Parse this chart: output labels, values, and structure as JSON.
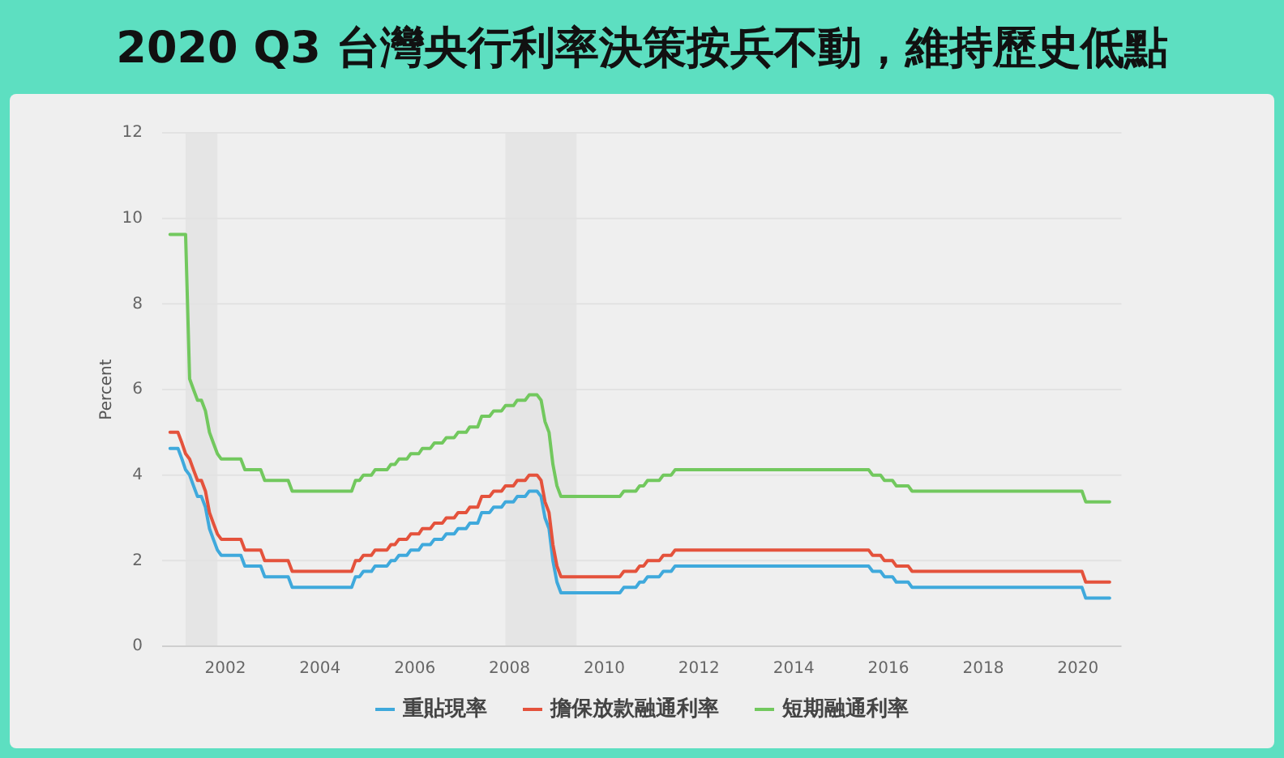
{
  "chart_data": {
    "type": "line",
    "title": "2020 Q3 台灣央行利率決策按兵不動，維持歷史低點",
    "ylabel": "Percent",
    "x": [
      "2000-11",
      "2001-01",
      "2001-02",
      "2001-03",
      "2001-04",
      "2001-05",
      "2001-06",
      "2001-07",
      "2001-08",
      "2001-09",
      "2001-10",
      "2001-11",
      "2001-12",
      "2002-05",
      "2002-06",
      "2002-10",
      "2002-11",
      "2003-05",
      "2003-06",
      "2004-09",
      "2004-10",
      "2004-11",
      "2004-12",
      "2005-02",
      "2005-03",
      "2005-06",
      "2005-07",
      "2005-08",
      "2005-09",
      "2005-11",
      "2005-12",
      "2006-02",
      "2006-03",
      "2006-05",
      "2006-06",
      "2006-08",
      "2006-09",
      "2006-11",
      "2006-12",
      "2007-02",
      "2007-03",
      "2007-05",
      "2007-06",
      "2007-08",
      "2007-09",
      "2007-11",
      "2007-12",
      "2008-02",
      "2008-03",
      "2008-05",
      "2008-06",
      "2008-08",
      "2008-09",
      "2008-10",
      "2008-11",
      "2008-12",
      "2009-01",
      "2009-02",
      "2010-05",
      "2010-06",
      "2010-09",
      "2010-10",
      "2010-11",
      "2010-12",
      "2011-03",
      "2011-04",
      "2011-06",
      "2011-07",
      "2015-08",
      "2015-09",
      "2015-11",
      "2015-12",
      "2016-02",
      "2016-03",
      "2016-06",
      "2016-07",
      "2020-02",
      "2020-03",
      "2020-09"
    ],
    "series": [
      {
        "name": "重貼現率",
        "color": "#3fa9dc",
        "values": [
          4.625,
          4.625,
          4.375,
          4.125,
          4.0,
          3.75,
          3.5,
          3.5,
          3.25,
          2.75,
          2.5,
          2.25,
          2.125,
          2.125,
          1.875,
          1.875,
          1.625,
          1.625,
          1.375,
          1.375,
          1.625,
          1.625,
          1.75,
          1.75,
          1.875,
          1.875,
          2.0,
          2.0,
          2.125,
          2.125,
          2.25,
          2.25,
          2.375,
          2.375,
          2.5,
          2.5,
          2.625,
          2.625,
          2.75,
          2.75,
          2.875,
          2.875,
          3.125,
          3.125,
          3.25,
          3.25,
          3.375,
          3.375,
          3.5,
          3.5,
          3.625,
          3.625,
          3.5,
          3.0,
          2.75,
          2.0,
          1.5,
          1.25,
          1.25,
          1.375,
          1.375,
          1.5,
          1.5,
          1.625,
          1.625,
          1.75,
          1.75,
          1.875,
          1.875,
          1.75,
          1.75,
          1.625,
          1.625,
          1.5,
          1.5,
          1.375,
          1.375,
          1.125,
          1.125
        ]
      },
      {
        "name": "擔保放款融通利率",
        "color": "#e4523c",
        "values": [
          5.0,
          5.0,
          4.75,
          4.5,
          4.375,
          4.125,
          3.875,
          3.875,
          3.625,
          3.125,
          2.875,
          2.625,
          2.5,
          2.5,
          2.25,
          2.25,
          2.0,
          2.0,
          1.75,
          1.75,
          2.0,
          2.0,
          2.125,
          2.125,
          2.25,
          2.25,
          2.375,
          2.375,
          2.5,
          2.5,
          2.625,
          2.625,
          2.75,
          2.75,
          2.875,
          2.875,
          3.0,
          3.0,
          3.125,
          3.125,
          3.25,
          3.25,
          3.5,
          3.5,
          3.625,
          3.625,
          3.75,
          3.75,
          3.875,
          3.875,
          4.0,
          4.0,
          3.875,
          3.375,
          3.125,
          2.375,
          1.875,
          1.625,
          1.625,
          1.75,
          1.75,
          1.875,
          1.875,
          2.0,
          2.0,
          2.125,
          2.125,
          2.25,
          2.25,
          2.125,
          2.125,
          2.0,
          2.0,
          1.875,
          1.875,
          1.75,
          1.75,
          1.5,
          1.5
        ]
      },
      {
        "name": "短期融通利率",
        "color": "#72c85e",
        "values": [
          9.625,
          9.625,
          9.625,
          9.625,
          6.25,
          6.0,
          5.75,
          5.75,
          5.5,
          5.0,
          4.75,
          4.5,
          4.375,
          4.375,
          4.125,
          4.125,
          3.875,
          3.875,
          3.625,
          3.625,
          3.875,
          3.875,
          4.0,
          4.0,
          4.125,
          4.125,
          4.25,
          4.25,
          4.375,
          4.375,
          4.5,
          4.5,
          4.625,
          4.625,
          4.75,
          4.75,
          4.875,
          4.875,
          5.0,
          5.0,
          5.125,
          5.125,
          5.375,
          5.375,
          5.5,
          5.5,
          5.625,
          5.625,
          5.75,
          5.75,
          5.875,
          5.875,
          5.75,
          5.25,
          5.0,
          4.25,
          3.75,
          3.5,
          3.5,
          3.625,
          3.625,
          3.75,
          3.75,
          3.875,
          3.875,
          4.0,
          4.0,
          4.125,
          4.125,
          4.0,
          4.0,
          3.875,
          3.875,
          3.75,
          3.75,
          3.625,
          3.625,
          3.375,
          3.375
        ]
      }
    ],
    "xlim": [
      "2000-09",
      "2020-12"
    ],
    "xticks": [
      "2002",
      "2004",
      "2006",
      "2008",
      "2010",
      "2012",
      "2014",
      "2016",
      "2018",
      "2020"
    ],
    "ylim": [
      0,
      12
    ],
    "yticks": [
      0,
      2,
      4,
      6,
      8,
      10,
      12
    ],
    "grid": "y",
    "legend": "bottom",
    "line_style": "solid",
    "bands": [
      {
        "axis": "x",
        "from": "2001-03",
        "to": "2001-11",
        "color": "#e5e5e5"
      },
      {
        "axis": "x",
        "from": "2007-12",
        "to": "2009-06",
        "color": "#e5e5e5"
      }
    ]
  }
}
